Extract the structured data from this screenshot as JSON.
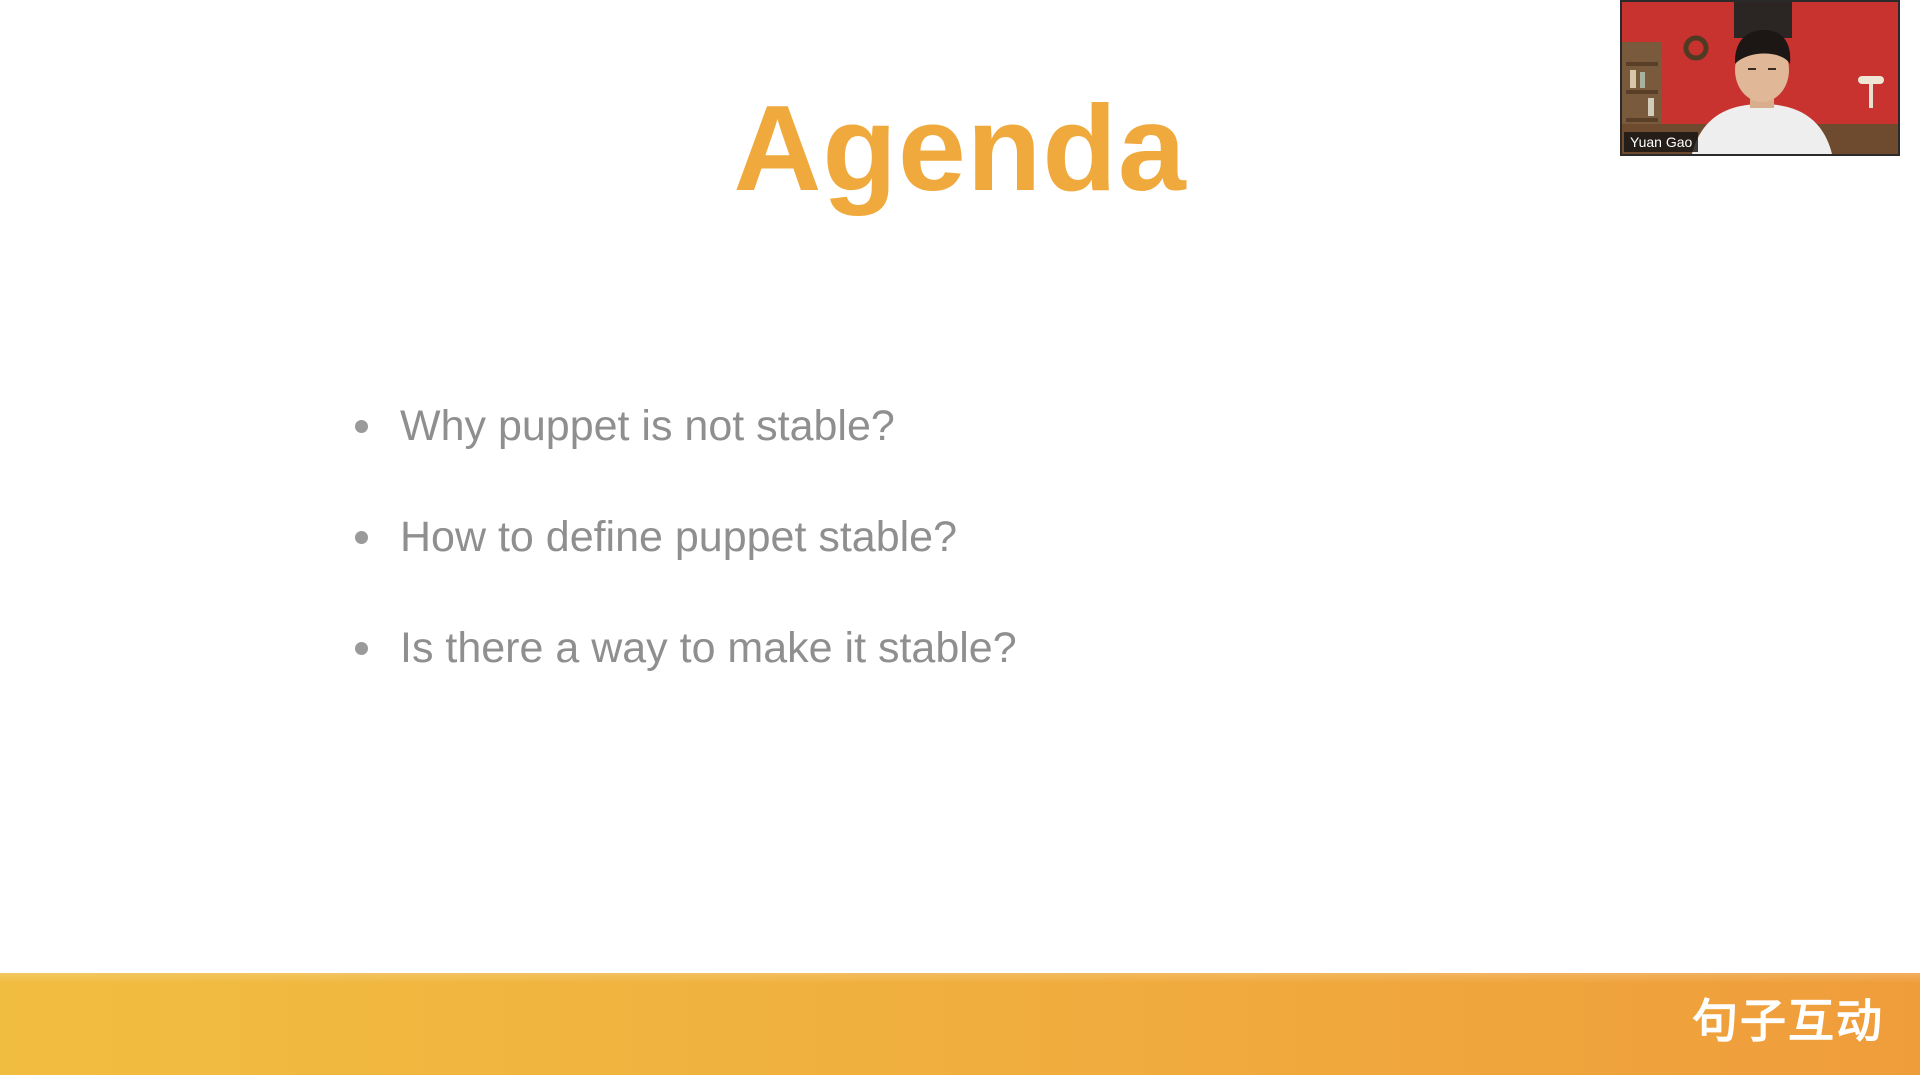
{
  "slide": {
    "title": "Agenda",
    "items": [
      {
        "text": "Why puppet is not stable?"
      },
      {
        "text": "How to define puppet stable?"
      },
      {
        "text": "Is there a way to make it stable?"
      }
    ],
    "brand_text": "句子互动"
  },
  "video_call": {
    "participant_name": "Yuan Gao"
  },
  "colors": {
    "title": "#f0a93c",
    "item_text": "#8f8f8f",
    "bullet": "#9a9a9a",
    "band_start": "#f1bd40",
    "band_end": "#ef9d3b"
  }
}
